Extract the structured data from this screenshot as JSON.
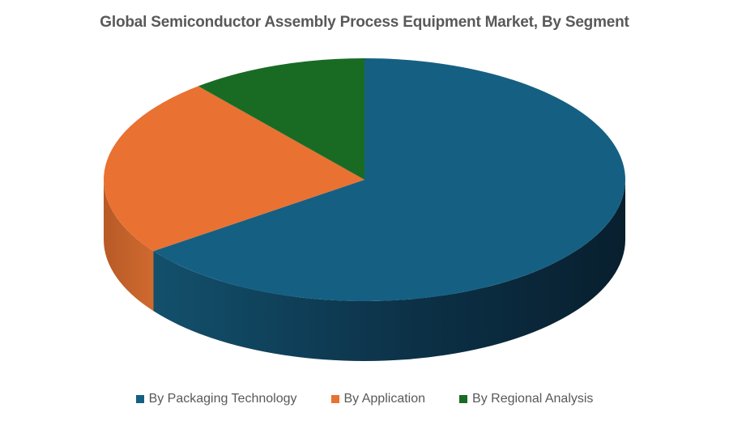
{
  "chart_data": {
    "type": "pie",
    "title": "Global Semiconductor Assembly Process Equipment Market, By Segment",
    "categories": [
      "By Packaging Technology",
      "By Application",
      "By Regional Analysis"
    ],
    "values": [
      65,
      24,
      11
    ],
    "colors": [
      "#156082",
      "#E97132",
      "#196B24"
    ],
    "legend_position": "bottom",
    "style": "3d"
  }
}
